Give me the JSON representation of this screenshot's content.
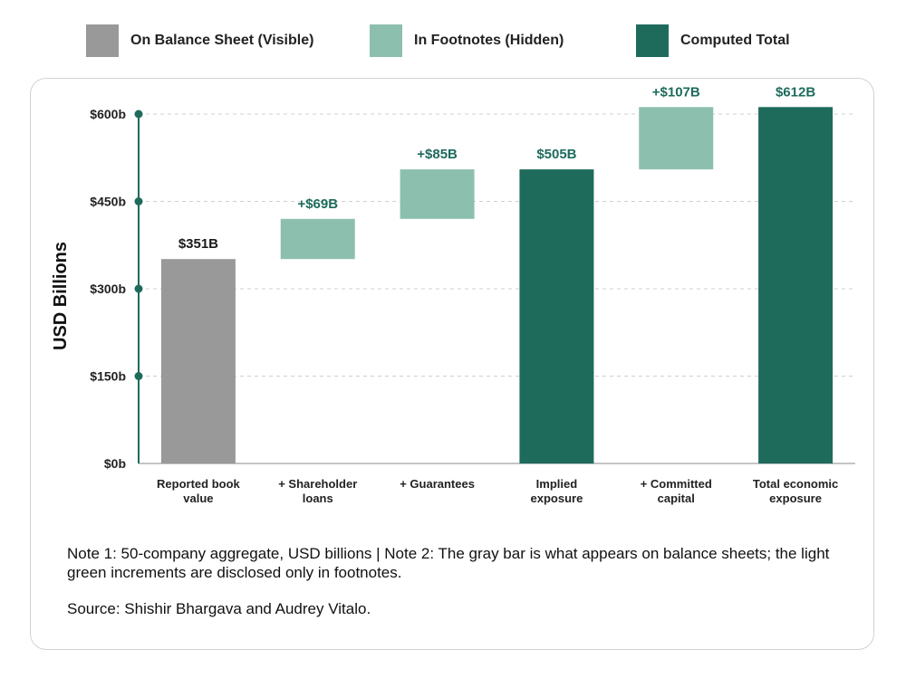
{
  "legend": [
    {
      "label": "On Balance Sheet (Visible)",
      "color": "#999999"
    },
    {
      "label": "In Footnotes (Hidden)",
      "color": "#8dbfaf"
    },
    {
      "label": "Computed Total",
      "color": "#1e6b5c"
    }
  ],
  "notes": {
    "line1": "Note 1: 50-company aggregate, USD billions | Note 2: The gray bar is what appears on balance sheets; the light green increments are disclosed only in footnotes.",
    "source": "Source: Shishir Bhargava and Audrey Vitalo."
  },
  "chart_data": {
    "type": "bar",
    "subtype": "waterfall",
    "ylabel": "USD Billions",
    "ylim": [
      0,
      600
    ],
    "yticks": [
      0,
      150,
      300,
      450,
      600
    ],
    "ytick_labels": [
      "$0b",
      "$150b",
      "$300b",
      "$450b",
      "$600b"
    ],
    "grid": true,
    "legend_position": "top",
    "colors": {
      "visible": "#999999",
      "hidden": "#8dbfaf",
      "total": "#1e6b5c",
      "axis": "#1e6b5c"
    },
    "categories": [
      [
        "Reported book",
        "value"
      ],
      [
        "+ Shareholder",
        "loans"
      ],
      [
        "+ Guarantees"
      ],
      [
        "Implied",
        "exposure"
      ],
      [
        "+ Committed",
        "capital"
      ],
      [
        "Total economic",
        "exposure"
      ]
    ],
    "bars": [
      {
        "kind": "visible",
        "start": 0,
        "end": 351,
        "label": "$351B"
      },
      {
        "kind": "hidden",
        "start": 351,
        "end": 420,
        "label": "+$69B"
      },
      {
        "kind": "hidden",
        "start": 420,
        "end": 505,
        "label": "+$85B"
      },
      {
        "kind": "total",
        "start": 0,
        "end": 505,
        "label": "$505B"
      },
      {
        "kind": "hidden",
        "start": 505,
        "end": 612,
        "label": "+$107B"
      },
      {
        "kind": "total",
        "start": 0,
        "end": 612,
        "label": "$612B"
      }
    ]
  }
}
